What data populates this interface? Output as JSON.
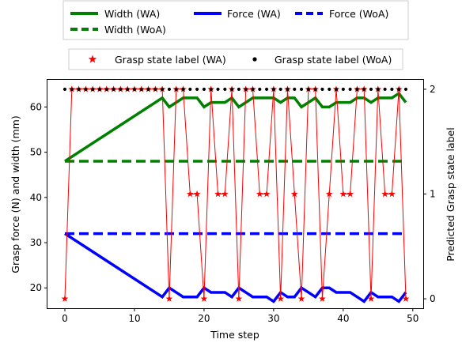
{
  "chart_data": {
    "type": "line",
    "xlabel": "Time step",
    "ylabel_left": "Grasp force (N) and width (mm)",
    "ylabel_right": "Predicted Grasp state label",
    "xlim": [
      -2.5,
      51.5
    ],
    "ylim_left": [
      15.5,
      66
    ],
    "ylim_right": [
      -0.09,
      2.09
    ],
    "x_ticks": [
      "0",
      "10",
      "20",
      "30",
      "40",
      "50"
    ],
    "x_tick_values": [
      0,
      10,
      20,
      30,
      40,
      50
    ],
    "y_left_ticks": [
      "20",
      "30",
      "40",
      "50",
      "60"
    ],
    "y_left_tick_values": [
      20,
      30,
      40,
      50,
      60
    ],
    "y_right_ticks": [
      "0",
      "1",
      "2"
    ],
    "y_right_tick_values": [
      0,
      1,
      2
    ],
    "grid": false,
    "legend_top": {
      "placement": "top-center",
      "entries": [
        {
          "label": "Width (WA)",
          "color": "#008000",
          "style": "solid"
        },
        {
          "label": "Force (WA)",
          "color": "#0000ff",
          "style": "solid"
        },
        {
          "label": "Force (WoA)",
          "color": "#0000ff",
          "style": "dashed"
        },
        {
          "label": "Width (WoA)",
          "color": "#008000",
          "style": "dashed"
        }
      ]
    },
    "legend_bottom": {
      "placement": "top-center",
      "entries": [
        {
          "label": "Grasp state label (WA)",
          "color": "#ff0000",
          "marker": "star"
        },
        {
          "label": "Grasp state label (WoA)",
          "color": "#000000",
          "marker": "dot"
        }
      ]
    },
    "series": [
      {
        "name": "Width (WA)",
        "axis": "left",
        "color": "#008000",
        "style": "solid",
        "x": [
          0,
          14,
          15,
          16,
          17,
          18,
          19,
          20,
          21,
          22,
          23,
          24,
          25,
          26,
          27,
          28,
          29,
          30,
          31,
          32,
          33,
          34,
          35,
          36,
          37,
          38,
          39,
          40,
          41,
          42,
          43,
          44,
          45,
          46,
          47,
          48,
          49
        ],
        "y": [
          48,
          62,
          60,
          61,
          62,
          62,
          62,
          60,
          61,
          61,
          61,
          62,
          60,
          61,
          62,
          62,
          62,
          62,
          61,
          62,
          62,
          60,
          61,
          62,
          60,
          60,
          61,
          61,
          61,
          62,
          62,
          61,
          62,
          62,
          62,
          63,
          61
        ]
      },
      {
        "name": "Width (WoA)",
        "axis": "left",
        "color": "#008000",
        "style": "dashed",
        "x": [
          0,
          49
        ],
        "y": [
          48,
          48
        ]
      },
      {
        "name": "Force (WA)",
        "axis": "left",
        "color": "#0000ff",
        "style": "solid",
        "x": [
          0,
          14,
          15,
          16,
          17,
          18,
          19,
          20,
          21,
          22,
          23,
          24,
          25,
          26,
          27,
          28,
          29,
          30,
          31,
          32,
          33,
          34,
          35,
          36,
          37,
          38,
          39,
          40,
          41,
          42,
          43,
          44,
          45,
          46,
          47,
          48,
          49
        ],
        "y": [
          32,
          18,
          20,
          19,
          18,
          18,
          18,
          20,
          19,
          19,
          19,
          18,
          20,
          19,
          18,
          18,
          18,
          17,
          19,
          18,
          18,
          20,
          19,
          18,
          20,
          20,
          19,
          19,
          19,
          18,
          17,
          19,
          18,
          18,
          18,
          17,
          19
        ]
      },
      {
        "name": "Force (WoA)",
        "axis": "left",
        "color": "#0000ff",
        "style": "dashed",
        "x": [
          0,
          49
        ],
        "y": [
          32,
          32
        ]
      },
      {
        "name": "Grasp state label (WA)",
        "axis": "right",
        "color": "#ff0000",
        "marker": "star",
        "line": true,
        "x": [
          0,
          1,
          2,
          3,
          4,
          5,
          6,
          7,
          8,
          9,
          10,
          11,
          12,
          13,
          14,
          15,
          16,
          17,
          18,
          19,
          20,
          21,
          22,
          23,
          24,
          25,
          26,
          27,
          28,
          29,
          30,
          31,
          32,
          33,
          34,
          35,
          36,
          37,
          38,
          39,
          40,
          41,
          42,
          43,
          44,
          45,
          46,
          47,
          48,
          49
        ],
        "y": [
          0,
          2,
          2,
          2,
          2,
          2,
          2,
          2,
          2,
          2,
          2,
          2,
          2,
          2,
          2,
          0,
          2,
          2,
          1,
          1,
          0,
          2,
          1,
          1,
          2,
          0,
          2,
          2,
          1,
          1,
          2,
          0,
          2,
          1,
          0,
          2,
          2,
          0,
          1,
          2,
          1,
          1,
          2,
          2,
          0,
          2,
          1,
          1,
          2,
          0
        ]
      },
      {
        "name": "Grasp state label (WoA)",
        "axis": "right",
        "color": "#000000",
        "marker": "dot",
        "line": false,
        "x": [
          0,
          1,
          2,
          3,
          4,
          5,
          6,
          7,
          8,
          9,
          10,
          11,
          12,
          13,
          14,
          15,
          16,
          17,
          18,
          19,
          20,
          21,
          22,
          23,
          24,
          25,
          26,
          27,
          28,
          29,
          30,
          31,
          32,
          33,
          34,
          35,
          36,
          37,
          38,
          39,
          40,
          41,
          42,
          43,
          44,
          45,
          46,
          47,
          48,
          49
        ],
        "y": [
          2,
          2,
          2,
          2,
          2,
          2,
          2,
          2,
          2,
          2,
          2,
          2,
          2,
          2,
          2,
          2,
          2,
          2,
          2,
          2,
          2,
          2,
          2,
          2,
          2,
          2,
          2,
          2,
          2,
          2,
          2,
          2,
          2,
          2,
          2,
          2,
          2,
          2,
          2,
          2,
          2,
          2,
          2,
          2,
          2,
          2,
          2,
          2,
          2,
          2
        ]
      }
    ]
  }
}
